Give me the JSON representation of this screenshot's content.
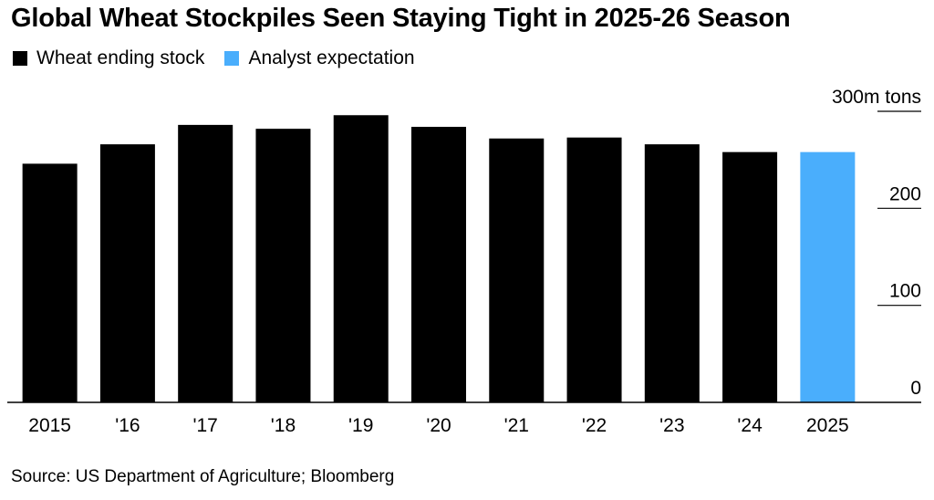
{
  "title": "Global Wheat Stockpiles Seen Staying Tight in 2025-26 Season",
  "legend": [
    {
      "label": "Wheat ending stock",
      "color": "#000000"
    },
    {
      "label": "Analyst expectation",
      "color": "#4aaefc"
    }
  ],
  "source": "Source: US Department of Agriculture; Bloomberg",
  "chart_data": {
    "type": "bar",
    "categories": [
      "2015",
      "'16",
      "'17",
      "'18",
      "'19",
      "'20",
      "'21",
      "'22",
      "'23",
      "'24",
      "2025"
    ],
    "series": [
      {
        "name": "Wheat ending stock",
        "values": [
          246,
          266,
          286,
          282,
          296,
          284,
          272,
          273,
          266,
          258,
          null
        ],
        "color": "#000000"
      },
      {
        "name": "Analyst expectation",
        "values": [
          null,
          null,
          null,
          null,
          null,
          null,
          null,
          null,
          null,
          null,
          258
        ],
        "color": "#4aaefc"
      }
    ],
    "yticks": [
      {
        "value": 0,
        "label": "0"
      },
      {
        "value": 100,
        "label": "100"
      },
      {
        "value": 200,
        "label": "200"
      },
      {
        "value": 300,
        "label": "300m tons"
      }
    ],
    "ylim": [
      0,
      300
    ],
    "ylabel": "",
    "xlabel": "",
    "grid": false,
    "legend_position": "top-left"
  }
}
